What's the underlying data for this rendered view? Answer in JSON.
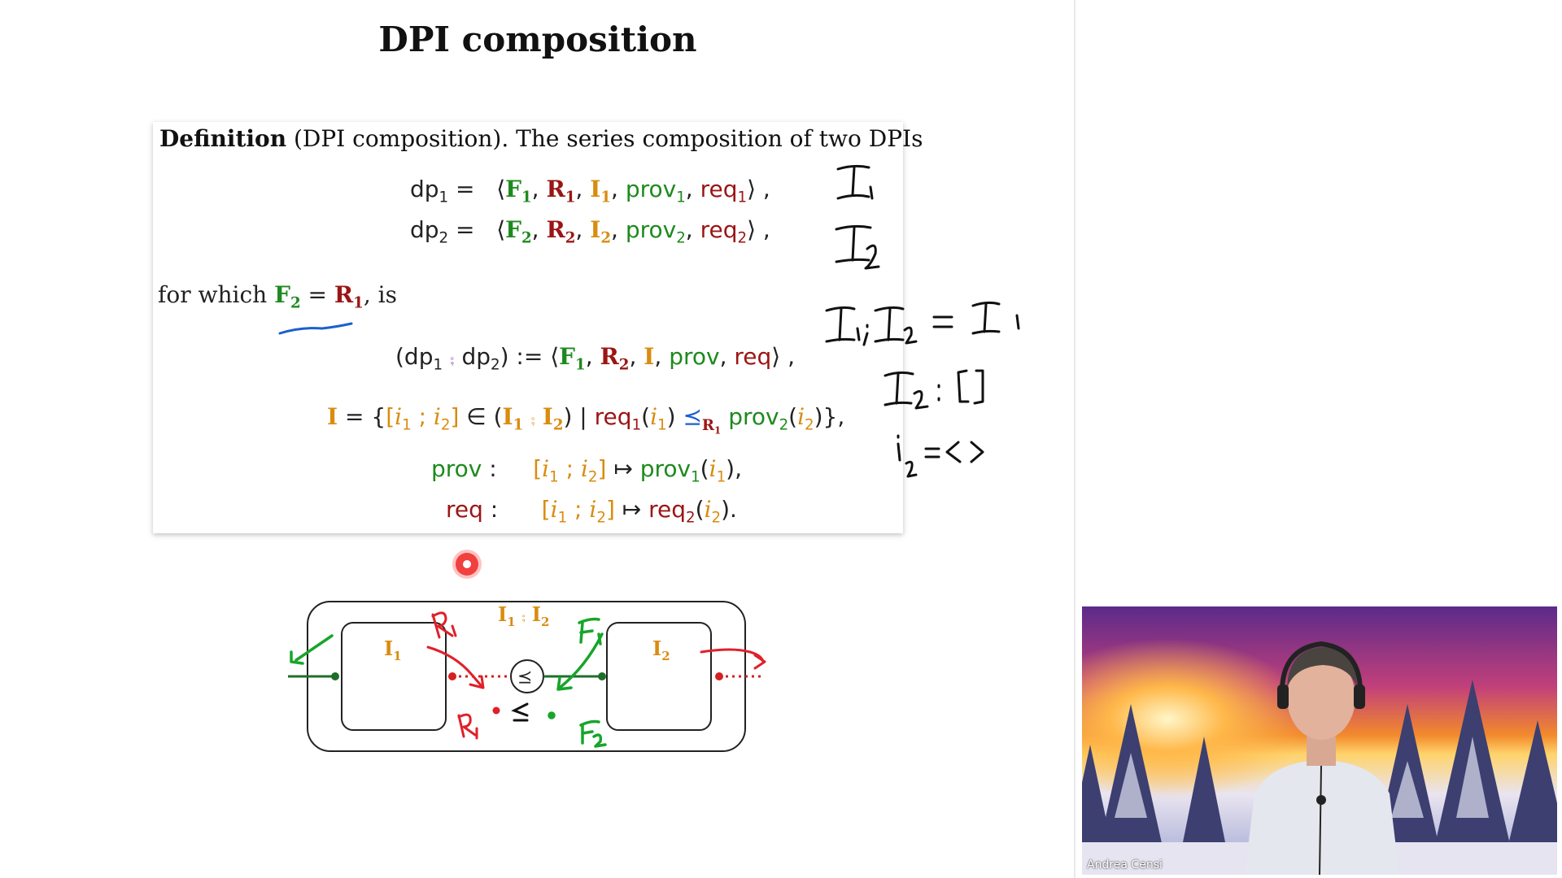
{
  "slide": {
    "title": "DPI composition",
    "definition": {
      "head_bold": "Definition",
      "head_rest": " (DPI composition).  The series composition of two DPIs",
      "for_which_prefix": "for which ",
      "for_which_suffix": ", is"
    },
    "diagram": {
      "box1_label": "I",
      "box2_label": "I",
      "composite_label": "I",
      "comparator_symbol": "⪯"
    }
  },
  "annotations": {
    "ink_color_black": "#111111",
    "ink_color_blue": "#1a5fd0",
    "ink_color_red": "#e0202a",
    "ink_color_green": "#17a52a"
  },
  "webcam": {
    "speaker_name": "Andrea Censi"
  }
}
